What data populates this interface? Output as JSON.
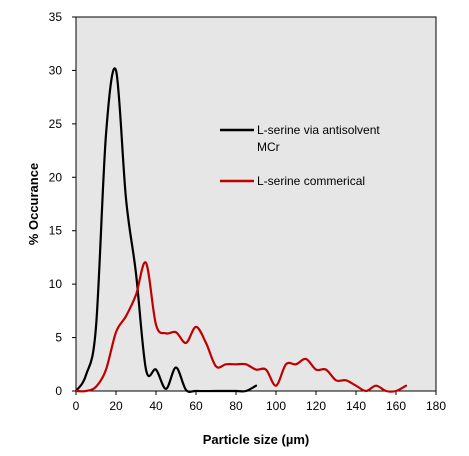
{
  "chart_data": {
    "type": "line",
    "xlabel": "Particle size (µm)",
    "ylabel": "% Occurance",
    "xlim": [
      0,
      180
    ],
    "ylim": [
      0,
      35
    ],
    "xticks": [
      0,
      20,
      40,
      60,
      80,
      100,
      120,
      140,
      160,
      180
    ],
    "yticks": [
      0,
      5,
      10,
      15,
      20,
      25,
      30,
      35
    ],
    "grid": false,
    "plot_background": "#e6e6e6",
    "legend_position": "right, inside plot",
    "series": [
      {
        "name": "L-serine via antisolvent MCr",
        "color": "#000000",
        "x": [
          0,
          5,
          10,
          15,
          20,
          25,
          30,
          35,
          40,
          45,
          50,
          55,
          60,
          70,
          80,
          85,
          90
        ],
        "y": [
          0,
          1.5,
          6,
          24,
          30,
          18,
          11,
          2,
          2,
          0.2,
          2.2,
          0.1,
          0,
          0,
          0,
          0,
          0.5
        ]
      },
      {
        "name": "L-serine commerical",
        "color": "#c00000",
        "x": [
          0,
          5,
          10,
          15,
          20,
          25,
          30,
          35,
          40,
          45,
          50,
          55,
          60,
          65,
          70,
          75,
          80,
          85,
          90,
          95,
          100,
          105,
          110,
          115,
          120,
          125,
          130,
          135,
          140,
          145,
          150,
          155,
          160,
          165
        ],
        "y": [
          0,
          0,
          0.4,
          2,
          5.5,
          7,
          9,
          12,
          6.2,
          5.4,
          5.5,
          4.5,
          6,
          4.5,
          2.3,
          2.5,
          2.5,
          2.5,
          2,
          2,
          0.5,
          2.5,
          2.5,
          3,
          2,
          2,
          1,
          1,
          0.5,
          0,
          0.5,
          0,
          0,
          0.5
        ]
      }
    ]
  }
}
